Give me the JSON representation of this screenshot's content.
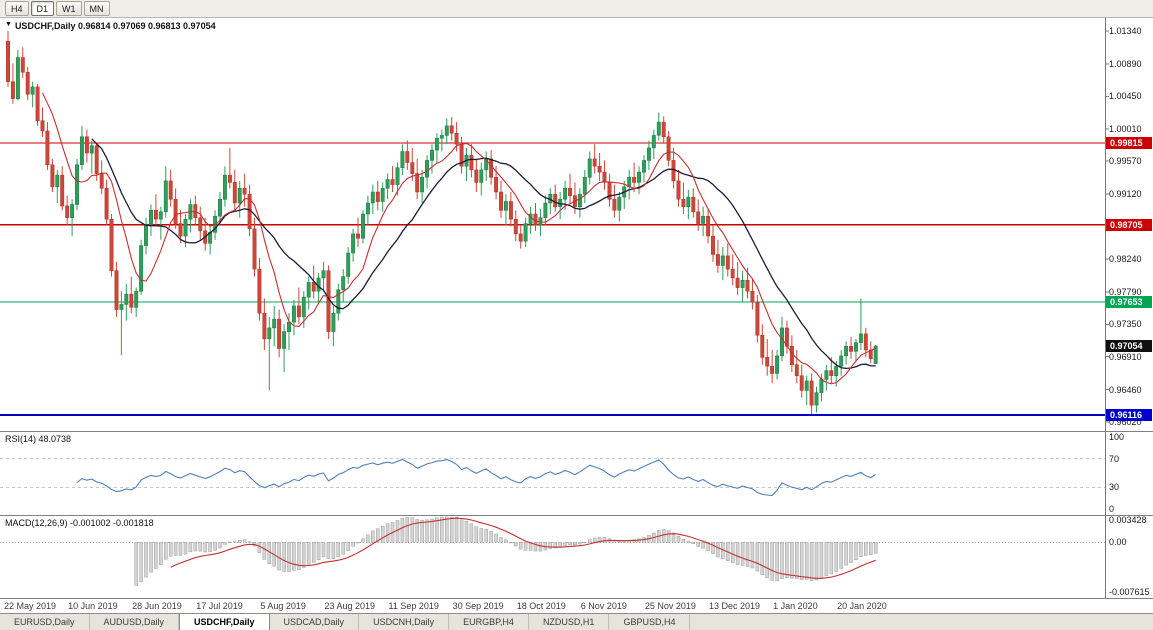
{
  "toolbar": {
    "timeframes": [
      {
        "label": "H4",
        "active": false
      },
      {
        "label": "D1",
        "active": true
      },
      {
        "label": "W1",
        "active": false
      },
      {
        "label": "MN",
        "active": false
      }
    ]
  },
  "chart": {
    "readout": "USDCHF,Daily 0.96814 0.97069 0.96813 0.97054",
    "symbol": "USDCHF",
    "timeframe": "Daily",
    "y_ticks": [
      "1.01340",
      "1.00890",
      "1.00450",
      "1.00010",
      "0.99570",
      "0.99120",
      "0.98240",
      "0.97790",
      "0.97350",
      "0.96910",
      "0.96460",
      "0.96020"
    ],
    "current_price": {
      "value": 0.97054,
      "label": "0.97054",
      "color": "#101010"
    },
    "colors": {
      "up": "#2e9e5b",
      "upEdge": "#1d7a43",
      "down": "#cf4639",
      "downEdge": "#a93427",
      "rsi": "#4f81bd",
      "hist": "#d4d4d4",
      "histEdge": "#9e9e9e",
      "macdSignal": "#c62f2f"
    }
  },
  "rsi": {
    "readout": "RSI(14) 48.0738",
    "period": 14,
    "value": 48.0738,
    "levels": [
      {
        "value": 100,
        "label": "100"
      },
      {
        "value": 70,
        "label": "70"
      },
      {
        "value": 30,
        "label": "30"
      },
      {
        "value": 0,
        "label": "0"
      }
    ]
  },
  "macd": {
    "readout": "MACD(12,26,9) -0.001002 -0.001818",
    "fast": 12,
    "slow": 26,
    "signal": 9,
    "value": -0.001002,
    "signal_value": -0.001818,
    "axis": [
      {
        "value": 0.003428,
        "label": "0.003428"
      },
      {
        "value": 0,
        "label": "0.00"
      },
      {
        "value": -0.007615,
        "label": "-0.007615"
      }
    ]
  },
  "tabs": [
    {
      "label": "EURUSD,Daily",
      "active": false
    },
    {
      "label": "AUDUSD,Daily",
      "active": false
    },
    {
      "label": "USDCHF,Daily",
      "active": true
    },
    {
      "label": "USDCAD,Daily",
      "active": false
    },
    {
      "label": "USDCNH,Daily",
      "active": false
    },
    {
      "label": "EURGBP,H4",
      "active": false
    },
    {
      "label": "NZDUSD,H1",
      "active": false
    },
    {
      "label": "GBPUSD,H4",
      "active": false
    }
  ],
  "chart_data": {
    "type": "candlestick",
    "symbol": "USDCHF",
    "timeframe": "Daily",
    "y_axis_range": [
      0.9602,
      1.0134
    ],
    "hlines": [
      {
        "value": 0.99815,
        "label": "0.99815",
        "color": "#cc0000",
        "width": 1.2
      },
      {
        "value": 0.98705,
        "label": "0.98705",
        "color": "#cc0000",
        "width": 1.2
      },
      {
        "value": 0.97653,
        "label": "0.97653",
        "color": "#00a651",
        "width": 1.4
      },
      {
        "value": 0.96116,
        "label": "0.96116",
        "color": "#0000cc",
        "width": 2
      }
    ],
    "ma_overlays": [
      {
        "name": "ma-fast",
        "type": "sma",
        "period": 8,
        "color": "#c62f2f"
      },
      {
        "name": "ma-slow",
        "type": "sma",
        "period": 18,
        "color": "#1c1c3a"
      }
    ],
    "x_labels": [
      [
        0,
        "22 May 2019"
      ],
      [
        13,
        "10 Jun 2019"
      ],
      [
        26,
        "28 Jun 2019"
      ],
      [
        39,
        "17 Jul 2019"
      ],
      [
        52,
        "5 Aug 2019"
      ],
      [
        65,
        "23 Aug 2019"
      ],
      [
        78,
        "11 Sep 2019"
      ],
      [
        91,
        "30 Sep 2019"
      ],
      [
        104,
        "18 Oct 2019"
      ],
      [
        117,
        "6 Nov 2019"
      ],
      [
        130,
        "25 Nov 2019"
      ],
      [
        143,
        "13 Dec 2019"
      ],
      [
        156,
        "1 Jan 2020"
      ],
      [
        169,
        "20 Jan 2020"
      ]
    ],
    "candles": [
      [
        1.012,
        1.0134,
        1.0058,
        1.0065
      ],
      [
        1.0065,
        1.009,
        1.0035,
        1.0042
      ],
      [
        1.0042,
        1.0108,
        1.004,
        1.0098
      ],
      [
        1.0098,
        1.0112,
        1.007,
        1.0078
      ],
      [
        1.0078,
        1.0085,
        1.004,
        1.0048
      ],
      [
        1.0048,
        1.0065,
        1.003,
        1.0058
      ],
      [
        1.0058,
        1.0062,
        1.0005,
        1.0012
      ],
      [
        1.0012,
        1.003,
        0.999,
        0.9998
      ],
      [
        0.9998,
        1.001,
        0.9945,
        0.9952
      ],
      [
        0.9952,
        0.996,
        0.9915,
        0.9922
      ],
      [
        0.9922,
        0.9945,
        0.99,
        0.9938
      ],
      [
        0.9938,
        0.995,
        0.989,
        0.9896
      ],
      [
        0.9896,
        0.991,
        0.987,
        0.988
      ],
      [
        0.988,
        0.9905,
        0.9855,
        0.9898
      ],
      [
        0.9898,
        0.996,
        0.989,
        0.9952
      ],
      [
        0.9952,
        1.0005,
        0.9945,
        0.999
      ],
      [
        0.999,
        1.0,
        0.9955,
        0.9968
      ],
      [
        0.9968,
        0.9985,
        0.994,
        0.9978
      ],
      [
        0.9978,
        0.998,
        0.993,
        0.994
      ],
      [
        0.994,
        0.9958,
        0.9912,
        0.992
      ],
      [
        0.992,
        0.9932,
        0.987,
        0.9878
      ],
      [
        0.9878,
        0.9885,
        0.98,
        0.9808
      ],
      [
        0.9808,
        0.982,
        0.9745,
        0.9755
      ],
      [
        0.9755,
        0.978,
        0.9693,
        0.9762
      ],
      [
        0.9762,
        0.979,
        0.974,
        0.9776
      ],
      [
        0.9776,
        0.98,
        0.975,
        0.9758
      ],
      [
        0.9758,
        0.9785,
        0.9745,
        0.978
      ],
      [
        0.978,
        0.985,
        0.9775,
        0.9842
      ],
      [
        0.9842,
        0.988,
        0.983,
        0.987
      ],
      [
        0.987,
        0.9898,
        0.9855,
        0.989
      ],
      [
        0.989,
        0.9912,
        0.987,
        0.9878
      ],
      [
        0.9878,
        0.9895,
        0.985,
        0.9888
      ],
      [
        0.9888,
        0.995,
        0.988,
        0.993
      ],
      [
        0.993,
        0.9945,
        0.9895,
        0.9905
      ],
      [
        0.9905,
        0.992,
        0.9865,
        0.9872
      ],
      [
        0.9872,
        0.989,
        0.9845,
        0.9855
      ],
      [
        0.9855,
        0.9885,
        0.984,
        0.9878
      ],
      [
        0.9878,
        0.9905,
        0.986,
        0.9898
      ],
      [
        0.9898,
        0.991,
        0.987,
        0.988
      ],
      [
        0.988,
        0.9895,
        0.985,
        0.9862
      ],
      [
        0.9862,
        0.988,
        0.9835,
        0.9845
      ],
      [
        0.9845,
        0.987,
        0.983,
        0.986
      ],
      [
        0.986,
        0.989,
        0.985,
        0.9882
      ],
      [
        0.9882,
        0.9915,
        0.987,
        0.9905
      ],
      [
        0.9905,
        0.995,
        0.9895,
        0.9938
      ],
      [
        0.9938,
        0.9975,
        0.992,
        0.9928
      ],
      [
        0.9928,
        0.9945,
        0.989,
        0.99
      ],
      [
        0.99,
        0.993,
        0.988,
        0.992
      ],
      [
        0.992,
        0.994,
        0.9895,
        0.9912
      ],
      [
        0.9912,
        0.9925,
        0.9855,
        0.9865
      ],
      [
        0.9865,
        0.988,
        0.98,
        0.981
      ],
      [
        0.981,
        0.9825,
        0.974,
        0.975
      ],
      [
        0.975,
        0.977,
        0.97,
        0.9715
      ],
      [
        0.9715,
        0.9745,
        0.9645,
        0.973
      ],
      [
        0.973,
        0.976,
        0.9705,
        0.9742
      ],
      [
        0.9742,
        0.9755,
        0.969,
        0.9702
      ],
      [
        0.9702,
        0.9735,
        0.967,
        0.9725
      ],
      [
        0.9725,
        0.975,
        0.97,
        0.9738
      ],
      [
        0.9738,
        0.9768,
        0.972,
        0.976
      ],
      [
        0.976,
        0.9785,
        0.9735,
        0.9745
      ],
      [
        0.9745,
        0.978,
        0.973,
        0.9772
      ],
      [
        0.9772,
        0.98,
        0.9755,
        0.9792
      ],
      [
        0.9792,
        0.9815,
        0.977,
        0.978
      ],
      [
        0.978,
        0.9805,
        0.9762,
        0.9798
      ],
      [
        0.9798,
        0.982,
        0.978,
        0.9808
      ],
      [
        0.9808,
        0.9815,
        0.9715,
        0.9725
      ],
      [
        0.9725,
        0.976,
        0.9705,
        0.975
      ],
      [
        0.975,
        0.979,
        0.974,
        0.9782
      ],
      [
        0.9782,
        0.981,
        0.9765,
        0.98
      ],
      [
        0.98,
        0.984,
        0.979,
        0.9832
      ],
      [
        0.9832,
        0.9865,
        0.982,
        0.9858
      ],
      [
        0.9858,
        0.988,
        0.984,
        0.9852
      ],
      [
        0.9852,
        0.989,
        0.9845,
        0.9885
      ],
      [
        0.9885,
        0.991,
        0.987,
        0.99
      ],
      [
        0.99,
        0.9925,
        0.9885,
        0.9915
      ],
      [
        0.9915,
        0.993,
        0.989,
        0.9902
      ],
      [
        0.9902,
        0.9928,
        0.9888,
        0.992
      ],
      [
        0.992,
        0.994,
        0.9905,
        0.9932
      ],
      [
        0.9932,
        0.995,
        0.9915,
        0.9925
      ],
      [
        0.9925,
        0.9955,
        0.991,
        0.9948
      ],
      [
        0.9948,
        0.998,
        0.9938,
        0.997
      ],
      [
        0.997,
        0.9985,
        0.9945,
        0.9955
      ],
      [
        0.9955,
        0.9975,
        0.993,
        0.994
      ],
      [
        0.994,
        0.996,
        0.9905,
        0.9915
      ],
      [
        0.9915,
        0.9945,
        0.99,
        0.9935
      ],
      [
        0.9935,
        0.9965,
        0.992,
        0.9958
      ],
      [
        0.9958,
        0.998,
        0.994,
        0.9972
      ],
      [
        0.9972,
        0.9995,
        0.9955,
        0.9988
      ],
      [
        0.9988,
        1.0,
        0.997,
        0.9992
      ],
      [
        0.9992,
        1.0015,
        0.998,
        1.0005
      ],
      [
        1.0005,
        1.0017,
        0.9985,
        0.9995
      ],
      [
        0.9995,
        1.001,
        0.997,
        0.998
      ],
      [
        0.998,
        0.999,
        0.994,
        0.995
      ],
      [
        0.995,
        0.9975,
        0.993,
        0.9965
      ],
      [
        0.9965,
        0.998,
        0.9935,
        0.9945
      ],
      [
        0.9945,
        0.996,
        0.9915,
        0.9928
      ],
      [
        0.9928,
        0.9955,
        0.991,
        0.9945
      ],
      [
        0.9945,
        0.997,
        0.993,
        0.996
      ],
      [
        0.996,
        0.9972,
        0.9925,
        0.9935
      ],
      [
        0.9935,
        0.995,
        0.9905,
        0.9915
      ],
      [
        0.9915,
        0.993,
        0.988,
        0.989
      ],
      [
        0.989,
        0.9912,
        0.987,
        0.9902
      ],
      [
        0.9902,
        0.9915,
        0.9868,
        0.9878
      ],
      [
        0.9878,
        0.989,
        0.9848,
        0.9858
      ],
      [
        0.9858,
        0.987,
        0.9838,
        0.9848
      ],
      [
        0.9848,
        0.988,
        0.984,
        0.9872
      ],
      [
        0.9872,
        0.9895,
        0.9858,
        0.9885
      ],
      [
        0.9885,
        0.99,
        0.9862,
        0.987
      ],
      [
        0.987,
        0.9892,
        0.9855,
        0.988
      ],
      [
        0.988,
        0.991,
        0.987,
        0.99
      ],
      [
        0.99,
        0.992,
        0.9885,
        0.9912
      ],
      [
        0.9912,
        0.9925,
        0.9888,
        0.9895
      ],
      [
        0.9895,
        0.9915,
        0.9878,
        0.9905
      ],
      [
        0.9905,
        0.993,
        0.989,
        0.992
      ],
      [
        0.992,
        0.994,
        0.99,
        0.991
      ],
      [
        0.991,
        0.9928,
        0.9885,
        0.9895
      ],
      [
        0.9895,
        0.992,
        0.988,
        0.9912
      ],
      [
        0.9912,
        0.9945,
        0.99,
        0.9935
      ],
      [
        0.9935,
        0.997,
        0.9925,
        0.996
      ],
      [
        0.996,
        0.998,
        0.994,
        0.995
      ],
      [
        0.995,
        0.9968,
        0.993,
        0.9942
      ],
      [
        0.9942,
        0.9958,
        0.9918,
        0.9928
      ],
      [
        0.9928,
        0.994,
        0.9895,
        0.9905
      ],
      [
        0.9905,
        0.9925,
        0.988,
        0.989
      ],
      [
        0.989,
        0.9915,
        0.9875,
        0.9908
      ],
      [
        0.9908,
        0.993,
        0.9892,
        0.9922
      ],
      [
        0.9922,
        0.9945,
        0.9905,
        0.9935
      ],
      [
        0.9935,
        0.9955,
        0.9915,
        0.9928
      ],
      [
        0.9928,
        0.995,
        0.9912,
        0.9942
      ],
      [
        0.9942,
        0.9965,
        0.9928,
        0.9958
      ],
      [
        0.9958,
        0.9985,
        0.9945,
        0.9975
      ],
      [
        0.9975,
        1.0,
        0.996,
        0.9992
      ],
      [
        0.9992,
        1.0023,
        0.9985,
        1.001
      ],
      [
        1.001,
        1.0018,
        0.9982,
        0.999
      ],
      [
        0.999,
        0.9998,
        0.995,
        0.9958
      ],
      [
        0.9958,
        0.9975,
        0.992,
        0.993
      ],
      [
        0.993,
        0.9945,
        0.9895,
        0.9905
      ],
      [
        0.9905,
        0.9928,
        0.9885,
        0.9895
      ],
      [
        0.9895,
        0.9918,
        0.9878,
        0.9908
      ],
      [
        0.9908,
        0.992,
        0.988,
        0.9888
      ],
      [
        0.9888,
        0.9905,
        0.9862,
        0.9872
      ],
      [
        0.9872,
        0.9895,
        0.9855,
        0.9882
      ],
      [
        0.9882,
        0.9892,
        0.9845,
        0.9855
      ],
      [
        0.9855,
        0.987,
        0.982,
        0.983
      ],
      [
        0.983,
        0.985,
        0.9805,
        0.9815
      ],
      [
        0.9815,
        0.984,
        0.9795,
        0.9828
      ],
      [
        0.9828,
        0.9845,
        0.98,
        0.981
      ],
      [
        0.981,
        0.983,
        0.9788,
        0.9798
      ],
      [
        0.9798,
        0.982,
        0.9775,
        0.9785
      ],
      [
        0.9785,
        0.9808,
        0.9765,
        0.9795
      ],
      [
        0.9795,
        0.9812,
        0.977,
        0.978
      ],
      [
        0.978,
        0.9798,
        0.9755,
        0.9765
      ],
      [
        0.9765,
        0.9775,
        0.971,
        0.972
      ],
      [
        0.972,
        0.9735,
        0.968,
        0.969
      ],
      [
        0.969,
        0.9715,
        0.9665,
        0.9678
      ],
      [
        0.9678,
        0.97,
        0.9655,
        0.9668
      ],
      [
        0.9668,
        0.97,
        0.966,
        0.9692
      ],
      [
        0.9692,
        0.9745,
        0.9685,
        0.973
      ],
      [
        0.973,
        0.974,
        0.9695,
        0.9705
      ],
      [
        0.9705,
        0.972,
        0.967,
        0.968
      ],
      [
        0.968,
        0.97,
        0.9655,
        0.9665
      ],
      [
        0.9665,
        0.968,
        0.9635,
        0.9645
      ],
      [
        0.9645,
        0.9665,
        0.9625,
        0.9658
      ],
      [
        0.9658,
        0.9668,
        0.9613,
        0.9625
      ],
      [
        0.9625,
        0.965,
        0.9615,
        0.9642
      ],
      [
        0.9642,
        0.9668,
        0.963,
        0.966
      ],
      [
        0.966,
        0.968,
        0.9645,
        0.9672
      ],
      [
        0.9672,
        0.969,
        0.9655,
        0.9665
      ],
      [
        0.9665,
        0.9685,
        0.965,
        0.9678
      ],
      [
        0.9678,
        0.97,
        0.9665,
        0.9692
      ],
      [
        0.9692,
        0.9712,
        0.968,
        0.9705
      ],
      [
        0.9705,
        0.9718,
        0.9688,
        0.9698
      ],
      [
        0.9698,
        0.9715,
        0.9685,
        0.971
      ],
      [
        0.971,
        0.977,
        0.97,
        0.9722
      ],
      [
        0.9722,
        0.973,
        0.969,
        0.97
      ],
      [
        0.97,
        0.9712,
        0.9682,
        0.9688
      ],
      [
        0.96814,
        0.97069,
        0.96813,
        0.97054
      ]
    ]
  }
}
